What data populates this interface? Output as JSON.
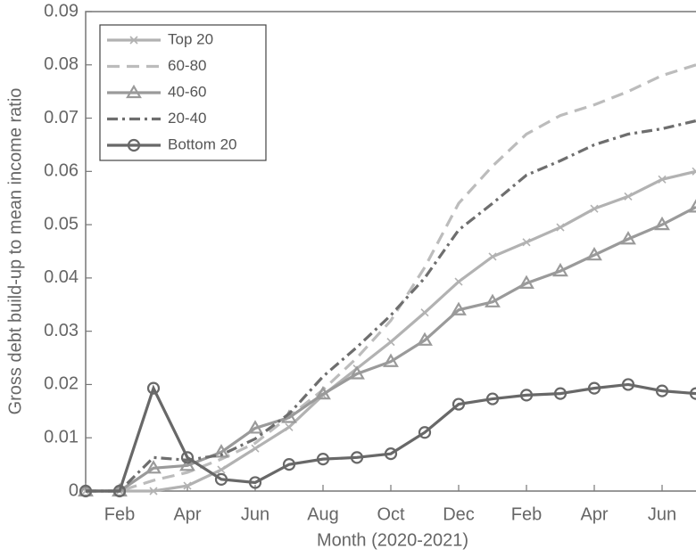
{
  "chart_data": {
    "type": "line",
    "x_label": "Month (2020-2021)",
    "y_label": "Gross debt build-up to mean income ratio",
    "categories": [
      null,
      "Feb",
      null,
      "Apr",
      null,
      "Jun",
      null,
      "Aug",
      null,
      "Oct",
      null,
      "Dec",
      null,
      "Feb",
      null,
      "Apr",
      null,
      "Jun",
      null
    ],
    "ylim": [
      0,
      0.09
    ],
    "yticks": [
      0,
      0.01,
      0.02,
      0.03,
      0.04,
      0.05,
      0.06,
      0.07,
      0.08,
      0.09
    ],
    "legend": "upper left",
    "series": [
      {
        "name": "Top 20",
        "color": "#b2b2b2",
        "marker": "x",
        "values": [
          0,
          0,
          0,
          0.001,
          0.004,
          0.008,
          0.012,
          0.018,
          0.023,
          0.028,
          0.0335,
          0.0393,
          0.044,
          0.0467,
          0.0495,
          0.053,
          0.0553,
          0.0585,
          0.06
        ]
      },
      {
        "name": "60-80",
        "color": "#bcbcbc",
        "dash": "dashed",
        "values": [
          0,
          0,
          0.002,
          0.0035,
          0.006,
          0.009,
          0.014,
          0.019,
          0.025,
          0.032,
          0.042,
          0.054,
          0.061,
          0.067,
          0.0705,
          0.0725,
          0.075,
          0.078,
          0.08
        ]
      },
      {
        "name": "40-60",
        "color": "#9a9a9a",
        "marker": "triangle",
        "values": [
          0,
          0,
          0.0043,
          0.0048,
          0.0073,
          0.0118,
          0.0138,
          0.0182,
          0.022,
          0.0243,
          0.0283,
          0.034,
          0.0355,
          0.039,
          0.0413,
          0.0443,
          0.0473,
          0.05,
          0.0533
        ]
      },
      {
        "name": "20-40",
        "color": "#6e6e6e",
        "dash": "dashdot",
        "values": [
          0,
          0,
          0.0063,
          0.0058,
          0.0068,
          0.0098,
          0.0145,
          0.0215,
          0.027,
          0.033,
          0.04,
          0.049,
          0.054,
          0.0593,
          0.062,
          0.065,
          0.067,
          0.068,
          0.0695
        ]
      },
      {
        "name": "Bottom 20",
        "color": "#686868",
        "marker": "circle",
        "values": [
          0,
          0,
          0.0193,
          0.0063,
          0.0022,
          0.0016,
          0.005,
          0.006,
          0.0063,
          0.007,
          0.011,
          0.0163,
          0.0173,
          0.018,
          0.0183,
          0.0193,
          0.02,
          0.0188,
          0.0183
        ]
      }
    ]
  }
}
